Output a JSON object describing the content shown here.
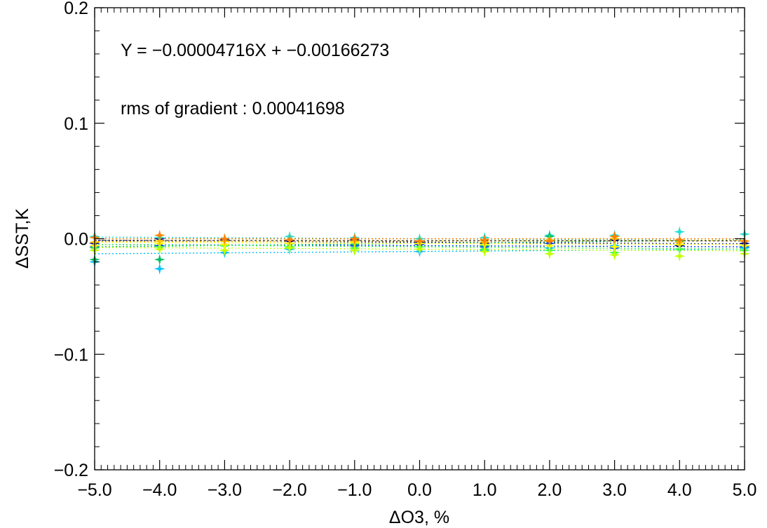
{
  "chart_data": {
    "type": "scatter",
    "title": "",
    "xlabel": "ΔO3, %",
    "ylabel": "ΔSST,K",
    "xlim": [
      -5.0,
      5.0
    ],
    "ylim": [
      -0.2,
      0.2
    ],
    "x_ticks": [
      -5.0,
      -4.0,
      -3.0,
      -2.0,
      -1.0,
      0.0,
      1.0,
      2.0,
      3.0,
      4.0,
      5.0
    ],
    "x_tick_labels": [
      "−5.0",
      "−4.0",
      "−3.0",
      "−2.0",
      "−1.0",
      "0.0",
      "1.0",
      "2.0",
      "3.0",
      "4.0",
      "5.0"
    ],
    "y_ticks": [
      -0.2,
      -0.1,
      0.0,
      0.1,
      0.2
    ],
    "y_tick_labels": [
      "−0.2",
      "−0.1",
      "0.0",
      "0.1",
      "0.2"
    ],
    "grid": false,
    "annotations": [
      "Y = −0.00004716X + −0.00166273",
      "rms of gradient : 0.00041698"
    ],
    "fit_line": {
      "slope": -4.716e-05,
      "intercept": -0.00166273
    },
    "series_colors": [
      "#000080",
      "#0040ff",
      "#00c0ff",
      "#20e0d0",
      "#00c060",
      "#40ff40",
      "#c0ff00",
      "#ffff00",
      "#ffc000",
      "#ff8000"
    ],
    "series": [
      {
        "color": "#000080",
        "slope": -0.0003,
        "intercept": -0.003,
        "points": [
          [
            -5,
            -0.004
          ],
          [
            -4,
            0.0
          ],
          [
            -3,
            -0.001
          ],
          [
            -2,
            -0.002
          ],
          [
            -1,
            -0.001
          ],
          [
            0,
            -0.003
          ],
          [
            1,
            -0.004
          ],
          [
            2,
            -0.002
          ],
          [
            3,
            -0.001
          ],
          [
            4,
            -0.006
          ],
          [
            5,
            -0.004
          ]
        ]
      },
      {
        "color": "#0040ff",
        "slope": -0.0002,
        "intercept": -0.006,
        "points": [
          [
            -5,
            -0.007
          ],
          [
            -4,
            -0.006
          ],
          [
            -3,
            -0.005
          ],
          [
            -2,
            -0.004
          ],
          [
            -1,
            -0.006
          ],
          [
            0,
            -0.005
          ],
          [
            1,
            -0.007
          ],
          [
            2,
            -0.004
          ],
          [
            3,
            -0.008
          ],
          [
            4,
            -0.009
          ],
          [
            5,
            -0.007
          ]
        ]
      },
      {
        "color": "#00c0ff",
        "slope": 0.0004,
        "intercept": -0.011,
        "points": [
          [
            -5,
            -0.02
          ],
          [
            -4,
            -0.026
          ],
          [
            -3,
            -0.012
          ],
          [
            -2,
            -0.009
          ],
          [
            -1,
            -0.01
          ],
          [
            0,
            -0.011
          ],
          [
            1,
            -0.01
          ],
          [
            2,
            -0.008
          ],
          [
            3,
            -0.006
          ],
          [
            4,
            -0.009
          ],
          [
            5,
            -0.008
          ]
        ]
      },
      {
        "color": "#20e0d0",
        "slope": -0.0003,
        "intercept": 0.0,
        "points": [
          [
            -5,
            0.002
          ],
          [
            -4,
            0.001
          ],
          [
            -3,
            0.0
          ],
          [
            -2,
            0.002
          ],
          [
            -1,
            0.001
          ],
          [
            0,
            0.0
          ],
          [
            1,
            0.001
          ],
          [
            2,
            0.003
          ],
          [
            3,
            0.003
          ],
          [
            4,
            0.006
          ],
          [
            5,
            0.004
          ]
        ]
      },
      {
        "color": "#00c060",
        "slope": 0.0006,
        "intercept": -0.004,
        "points": [
          [
            -5,
            -0.018
          ],
          [
            -4,
            -0.018
          ],
          [
            -3,
            -0.006
          ],
          [
            -2,
            -0.004
          ],
          [
            -1,
            -0.005
          ],
          [
            0,
            -0.004
          ],
          [
            1,
            -0.006
          ],
          [
            2,
            0.002
          ],
          [
            3,
            0.0
          ],
          [
            4,
            -0.002
          ],
          [
            5,
            -0.006
          ]
        ]
      },
      {
        "color": "#40ff40",
        "slope": -0.0004,
        "intercept": -0.007,
        "points": [
          [
            -5,
            -0.008
          ],
          [
            -4,
            -0.007
          ],
          [
            -3,
            -0.006
          ],
          [
            -2,
            -0.007
          ],
          [
            -1,
            -0.008
          ],
          [
            0,
            -0.007
          ],
          [
            1,
            -0.009
          ],
          [
            2,
            -0.01
          ],
          [
            3,
            -0.012
          ],
          [
            4,
            -0.009
          ],
          [
            5,
            -0.01
          ]
        ]
      },
      {
        "color": "#c0ff00",
        "slope": -0.0003,
        "intercept": -0.009,
        "points": [
          [
            -5,
            -0.01
          ],
          [
            -4,
            -0.009
          ],
          [
            -3,
            -0.01
          ],
          [
            -2,
            -0.008
          ],
          [
            -1,
            -0.01
          ],
          [
            0,
            -0.009
          ],
          [
            1,
            -0.011
          ],
          [
            2,
            -0.013
          ],
          [
            3,
            -0.014
          ],
          [
            4,
            -0.015
          ],
          [
            5,
            -0.013
          ]
        ]
      },
      {
        "color": "#ffff00",
        "slope": -0.0002,
        "intercept": -0.004,
        "points": [
          [
            -5,
            -0.006
          ],
          [
            -4,
            -0.004
          ],
          [
            -3,
            -0.005
          ],
          [
            -2,
            -0.004
          ],
          [
            -1,
            -0.003
          ],
          [
            0,
            -0.004
          ],
          [
            1,
            -0.005
          ],
          [
            2,
            -0.006
          ],
          [
            3,
            -0.007
          ],
          [
            4,
            -0.005
          ],
          [
            5,
            -0.006
          ]
        ]
      },
      {
        "color": "#ffc000",
        "slope": 0.0001,
        "intercept": -0.002,
        "points": [
          [
            -5,
            -0.003
          ],
          [
            -4,
            -0.002
          ],
          [
            -3,
            -0.002
          ],
          [
            -2,
            -0.001
          ],
          [
            -1,
            -0.002
          ],
          [
            0,
            -0.002
          ],
          [
            1,
            -0.003
          ],
          [
            2,
            -0.001
          ],
          [
            3,
            0.0
          ],
          [
            4,
            -0.003
          ],
          [
            5,
            -0.002
          ]
        ]
      },
      {
        "color": "#ff8000",
        "slope": 0.0,
        "intercept": 0.0,
        "points": [
          [
            -5,
            0.001
          ],
          [
            -4,
            0.003
          ],
          [
            -3,
            0.0
          ],
          [
            -2,
            -0.001
          ],
          [
            -1,
            0.0
          ],
          [
            0,
            -0.002
          ],
          [
            1,
            -0.001
          ],
          [
            2,
            -0.002
          ],
          [
            3,
            0.002
          ],
          [
            4,
            -0.001
          ],
          [
            5,
            -0.002
          ]
        ]
      }
    ]
  }
}
